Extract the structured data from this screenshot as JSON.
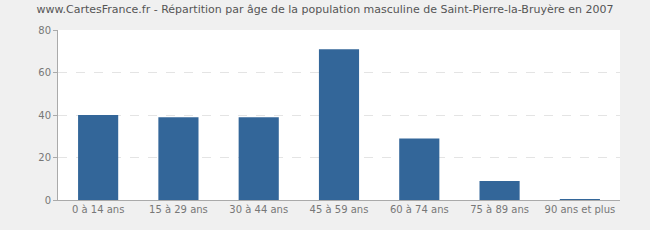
{
  "chart_data": {
    "type": "bar",
    "title": "www.CartesFrance.fr - Répartition par âge de la population masculine de Saint-Pierre-la-Bruyère en 2007",
    "categories": [
      "0 à 14 ans",
      "15 à 29 ans",
      "30 à 44 ans",
      "45 à 59 ans",
      "60 à 74 ans",
      "75 à 89 ans",
      "90 ans et plus"
    ],
    "values": [
      40,
      39,
      39,
      71,
      29,
      9,
      0.5
    ],
    "color": "#336699",
    "ylim": [
      0,
      80
    ],
    "yticks": [
      0,
      20,
      40,
      60,
      80
    ],
    "grid": true
  }
}
